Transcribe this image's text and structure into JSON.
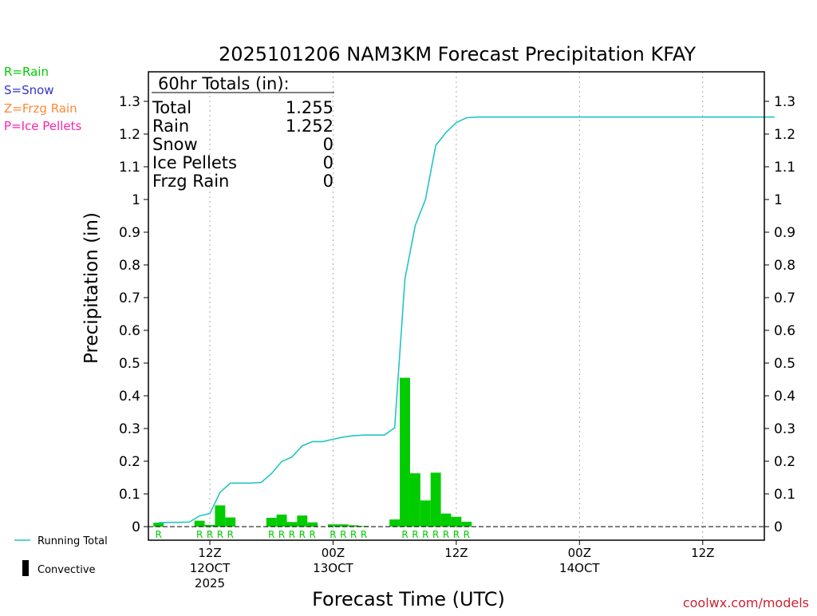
{
  "chart_data": {
    "type": "bar",
    "title": "2025101206 NAM3KM Forecast Precipitation KFAY",
    "xlabel": "Forecast Time (UTC)",
    "ylabel": "Precipitation (in)",
    "ylim": [
      0,
      1.35
    ],
    "y_ticks": [
      "0",
      "0.1",
      "0.2",
      "0.3",
      "0.4",
      "0.5",
      "0.6",
      "0.7",
      "0.8",
      "0.9",
      "1",
      "1.1",
      "1.2",
      "1.3"
    ],
    "x_unit": "forecast hour",
    "xlim": [
      7,
      67
    ],
    "x_ticks": [
      {
        "x": 12,
        "lines": [
          "12Z",
          "12OCT",
          "2025"
        ]
      },
      {
        "x": 24,
        "lines": [
          "00Z",
          "13OCT"
        ]
      },
      {
        "x": 36,
        "lines": [
          "12Z"
        ]
      },
      {
        "x": 48,
        "lines": [
          "00Z",
          "14OCT"
        ]
      },
      {
        "x": 60,
        "lines": [
          "12Z"
        ]
      }
    ],
    "grid": "vertical dotted at x ticks",
    "legend": {
      "ptype": [
        {
          "label": "R=Rain",
          "color": "#00cc00"
        },
        {
          "label": "S=Snow",
          "color": "#3333cc"
        },
        {
          "label": "Z=Frzg Rain",
          "color": "#ff8833"
        },
        {
          "label": "P=Ice Pellets",
          "color": "#ff22aa"
        }
      ],
      "running_total_label": "Running Total",
      "convective_label": "Convective"
    },
    "totals": {
      "heading": "60hr Totals (in):",
      "rows": [
        {
          "label": "Total",
          "value": "1.255"
        },
        {
          "label": "Rain",
          "value": "1.252"
        },
        {
          "label": "Snow",
          "value": "0"
        },
        {
          "label": "Ice Pellets",
          "value": "0"
        },
        {
          "label": "Frzg Rain",
          "value": "0"
        }
      ]
    },
    "series": [
      {
        "name": "Hourly precipitation",
        "kind": "bar",
        "color": "#00cc00",
        "points": [
          {
            "x": 7,
            "y": 0.012,
            "ptype": "R"
          },
          {
            "x": 11,
            "y": 0.018,
            "ptype": "R"
          },
          {
            "x": 12,
            "y": 0.005,
            "ptype": "R"
          },
          {
            "x": 13,
            "y": 0.065,
            "ptype": "R"
          },
          {
            "x": 14,
            "y": 0.028,
            "ptype": "R"
          },
          {
            "x": 18,
            "y": 0.027,
            "ptype": "R"
          },
          {
            "x": 19,
            "y": 0.037,
            "ptype": "R"
          },
          {
            "x": 20,
            "y": 0.014,
            "ptype": "R"
          },
          {
            "x": 21,
            "y": 0.034,
            "ptype": "R"
          },
          {
            "x": 22,
            "y": 0.013,
            "ptype": "R"
          },
          {
            "x": 24,
            "y": 0.007,
            "ptype": "R"
          },
          {
            "x": 25,
            "y": 0.007,
            "ptype": "R"
          },
          {
            "x": 26,
            "y": 0.004,
            "ptype": "R"
          },
          {
            "x": 27,
            "y": 0.002,
            "ptype": "R"
          },
          {
            "x": 30,
            "y": 0.022,
            "ptype": ""
          },
          {
            "x": 31,
            "y": 0.455,
            "ptype": "R"
          },
          {
            "x": 32,
            "y": 0.163,
            "ptype": "R"
          },
          {
            "x": 33,
            "y": 0.08,
            "ptype": "R"
          },
          {
            "x": 34,
            "y": 0.165,
            "ptype": "R"
          },
          {
            "x": 35,
            "y": 0.04,
            "ptype": "R"
          },
          {
            "x": 36,
            "y": 0.03,
            "ptype": "R"
          },
          {
            "x": 37,
            "y": 0.015,
            "ptype": "R"
          }
        ]
      },
      {
        "name": "Running Total",
        "kind": "line",
        "color": "#22c4c4",
        "points": [
          {
            "x": 7,
            "y": 0.012
          },
          {
            "x": 8,
            "y": 0.013
          },
          {
            "x": 9,
            "y": 0.013
          },
          {
            "x": 10,
            "y": 0.014
          },
          {
            "x": 11,
            "y": 0.033
          },
          {
            "x": 12,
            "y": 0.04
          },
          {
            "x": 13,
            "y": 0.105
          },
          {
            "x": 14,
            "y": 0.133
          },
          {
            "x": 15,
            "y": 0.133
          },
          {
            "x": 16,
            "y": 0.133
          },
          {
            "x": 17,
            "y": 0.135
          },
          {
            "x": 18,
            "y": 0.162
          },
          {
            "x": 19,
            "y": 0.199
          },
          {
            "x": 20,
            "y": 0.213
          },
          {
            "x": 21,
            "y": 0.247
          },
          {
            "x": 22,
            "y": 0.26
          },
          {
            "x": 23,
            "y": 0.26
          },
          {
            "x": 24,
            "y": 0.267
          },
          {
            "x": 25,
            "y": 0.274
          },
          {
            "x": 26,
            "y": 0.278
          },
          {
            "x": 27,
            "y": 0.28
          },
          {
            "x": 28,
            "y": 0.28
          },
          {
            "x": 29,
            "y": 0.28
          },
          {
            "x": 30,
            "y": 0.302
          },
          {
            "x": 31,
            "y": 0.757
          },
          {
            "x": 32,
            "y": 0.92
          },
          {
            "x": 33,
            "y": 1.0
          },
          {
            "x": 34,
            "y": 1.165
          },
          {
            "x": 35,
            "y": 1.205
          },
          {
            "x": 36,
            "y": 1.235
          },
          {
            "x": 37,
            "y": 1.25
          },
          {
            "x": 38,
            "y": 1.252
          },
          {
            "x": 67,
            "y": 1.252
          }
        ]
      }
    ]
  },
  "footer": {
    "credit": "coolwx.com/models"
  }
}
